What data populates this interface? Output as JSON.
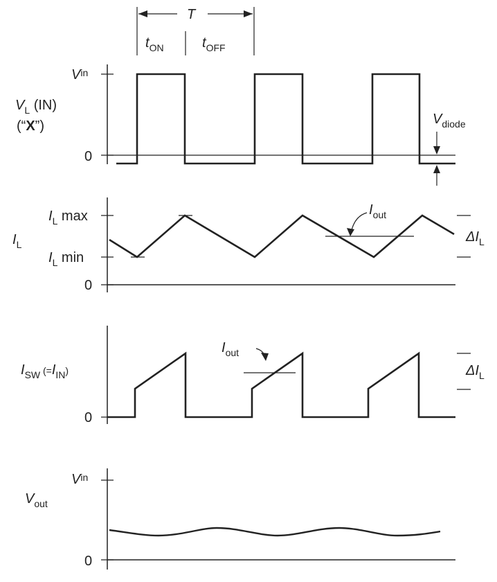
{
  "timing": {
    "period_label": "T",
    "on_label": "t",
    "on_sub": "ON",
    "off_label": "t",
    "off_sub": "OFF"
  },
  "panel_vl": {
    "name_main": "V",
    "name_sub": "L",
    "name_suffix": " (IN)",
    "alias_open": "(“",
    "alias_bold": "X",
    "alias_close": "”)",
    "tick_top_main": "V",
    "tick_top_sub": "in",
    "tick_zero": "0",
    "diode_main": "V",
    "diode_sub": "diode"
  },
  "panel_il": {
    "name_main": "I",
    "name_sub": "L",
    "max_main": "I",
    "max_sub": "L",
    "max_suffix": " max",
    "min_main": "I",
    "min_sub": "L",
    "min_suffix": " min",
    "tick_zero": "0",
    "iout_main": "I",
    "iout_sub": "out",
    "delta_main": "ΔI",
    "delta_sub": "L"
  },
  "panel_isw": {
    "name_main": "I",
    "name_sub": "SW",
    "name_mid": " (=",
    "name_main2": "I",
    "name_sub2": "IN",
    "name_close": ")",
    "tick_zero": "0",
    "iout_main": "I",
    "iout_sub": "out",
    "delta_main": "ΔI",
    "delta_sub": "L"
  },
  "panel_vout": {
    "name_main": "V",
    "name_sub": "out",
    "tick_top_main": "V",
    "tick_top_sub": "in",
    "tick_zero": "0"
  }
}
